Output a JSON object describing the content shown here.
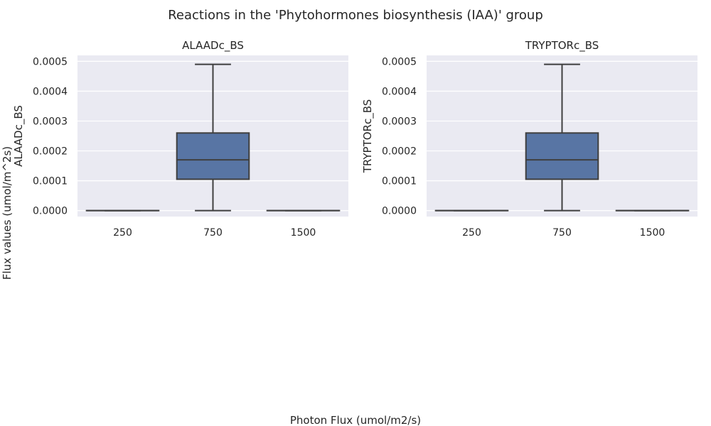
{
  "figure": {
    "title": "Reactions in the 'Phytohormones biosynthesis (IAA)' group",
    "xlabel": "Photon Flux (umol/m2/s)",
    "ylabel": "Flux values (umol/m^2s)"
  },
  "colors": {
    "panel_bg": "#eaeaf2",
    "grid": "#ffffff",
    "box_fill": "#5875a4",
    "box_line": "#3f3f3f"
  },
  "chart_data": [
    {
      "type": "box",
      "title": "ALAADc_BS",
      "ylabel": "ALAADc_BS",
      "categories": [
        "250",
        "750",
        "1500"
      ],
      "yticks": [
        "0.0000",
        "0.0001",
        "0.0002",
        "0.0003",
        "0.0004",
        "0.0005"
      ],
      "ylim": [
        -2e-05,
        0.00052
      ],
      "boxes": [
        {
          "category": "250",
          "whisker_low": 0,
          "q1": 0,
          "median": 0,
          "q3": 0,
          "whisker_high": 0
        },
        {
          "category": "750",
          "whisker_low": 0,
          "q1": 0.000105,
          "median": 0.00017,
          "q3": 0.00026,
          "whisker_high": 0.00049
        },
        {
          "category": "1500",
          "whisker_low": 0,
          "q1": 0,
          "median": 0,
          "q3": 0,
          "whisker_high": 0
        }
      ],
      "grid": true
    },
    {
      "type": "box",
      "title": "TRYPTORc_BS",
      "ylabel": "TRYPTORc_BS",
      "categories": [
        "250",
        "750",
        "1500"
      ],
      "yticks": [
        "0.0000",
        "0.0001",
        "0.0002",
        "0.0003",
        "0.0004",
        "0.0005"
      ],
      "ylim": [
        -2e-05,
        0.00052
      ],
      "boxes": [
        {
          "category": "250",
          "whisker_low": 0,
          "q1": 0,
          "median": 0,
          "q3": 0,
          "whisker_high": 0
        },
        {
          "category": "750",
          "whisker_low": 0,
          "q1": 0.000105,
          "median": 0.00017,
          "q3": 0.00026,
          "whisker_high": 0.00049
        },
        {
          "category": "1500",
          "whisker_low": 0,
          "q1": 0,
          "median": 0,
          "q3": 0,
          "whisker_high": 0
        }
      ],
      "grid": true
    }
  ]
}
